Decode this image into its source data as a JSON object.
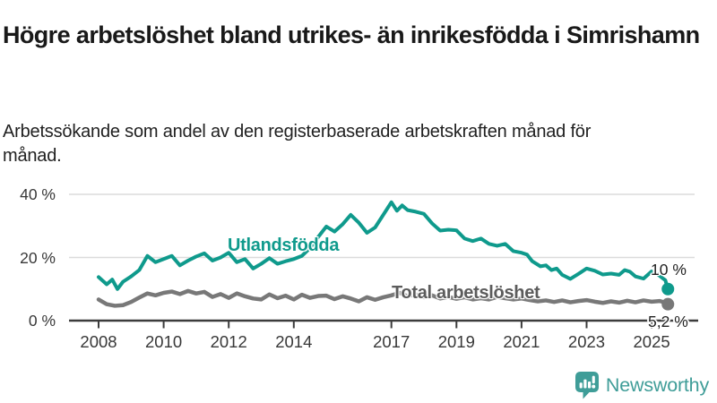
{
  "header": {
    "title": "Högre arbetslöshet bland utrikes- än inrikesfödda i Simrishamn",
    "subtitle": "Arbetssökande som andel av den registerbaserade arbetskraften månad för månad."
  },
  "chart_data": {
    "type": "line",
    "title": "Högre arbetslöshet bland utrikes- än inrikesfödda i Simrishamn",
    "xlabel": "",
    "ylabel": "",
    "x_unit": "decimal year (monthly data 2008 - mid 2025)",
    "ylim": [
      0,
      44
    ],
    "xlim": [
      2007.1,
      2026.5
    ],
    "grid": "horizontal only",
    "y_ticks": [
      {
        "value": 0,
        "label": "0 %"
      },
      {
        "value": 20,
        "label": "20 %"
      },
      {
        "value": 40,
        "label": "40 %"
      }
    ],
    "x_ticks": [
      "2008",
      "2010",
      "2012",
      "2014",
      "2017",
      "2019",
      "2021",
      "2023",
      "2025"
    ],
    "series": [
      {
        "name": "Utlandsfödda",
        "color": "#0F9A8C",
        "end_label": "10 %",
        "end_value": 10,
        "x": [
          2008.0,
          2008.25,
          2008.42,
          2008.58,
          2008.75,
          2009.0,
          2009.25,
          2009.5,
          2009.75,
          2010.0,
          2010.25,
          2010.5,
          2010.75,
          2011.0,
          2011.25,
          2011.5,
          2011.75,
          2012.0,
          2012.25,
          2012.5,
          2012.75,
          2013.0,
          2013.25,
          2013.5,
          2013.75,
          2014.0,
          2014.25,
          2014.5,
          2014.75,
          2015.0,
          2015.25,
          2015.5,
          2015.75,
          2016.0,
          2016.25,
          2016.5,
          2016.75,
          2017.0,
          2017.17,
          2017.33,
          2017.5,
          2017.75,
          2018.0,
          2018.25,
          2018.5,
          2018.75,
          2019.0,
          2019.25,
          2019.5,
          2019.75,
          2020.0,
          2020.25,
          2020.5,
          2020.75,
          2021.0,
          2021.17,
          2021.33,
          2021.58,
          2021.75,
          2021.92,
          2022.08,
          2022.25,
          2022.5,
          2022.75,
          2023.0,
          2023.25,
          2023.5,
          2023.75,
          2024.0,
          2024.17,
          2024.33,
          2024.5,
          2024.75,
          2025.0,
          2025.17,
          2025.33,
          2025.42,
          2025.5
        ],
        "y": [
          13.8,
          11.5,
          13.0,
          10.0,
          12.3,
          14.0,
          16.0,
          20.5,
          18.5,
          19.5,
          20.5,
          17.5,
          19.0,
          20.3,
          21.3,
          19.0,
          20.0,
          21.5,
          18.5,
          19.5,
          16.5,
          18.0,
          19.8,
          18.0,
          18.8,
          19.5,
          20.5,
          23.0,
          26.5,
          29.8,
          28.2,
          30.5,
          33.5,
          31.0,
          27.8,
          29.5,
          33.5,
          37.5,
          34.8,
          36.5,
          35.0,
          34.5,
          33.8,
          30.8,
          28.5,
          28.8,
          28.6,
          26.0,
          25.2,
          26.0,
          24.3,
          23.7,
          24.3,
          22.0,
          21.5,
          20.9,
          18.8,
          17.2,
          17.5,
          16.0,
          16.5,
          14.5,
          13.2,
          14.8,
          16.5,
          15.8,
          14.6,
          14.9,
          14.5,
          16.0,
          15.5,
          14.0,
          13.3,
          15.6,
          14.8,
          13.5,
          12.8,
          10.0
        ]
      },
      {
        "name": "Total arbetslöshet",
        "color": "#787878",
        "end_label": "5,2 %",
        "end_value": 5.2,
        "x": [
          2008.0,
          2008.25,
          2008.5,
          2008.75,
          2009.0,
          2009.25,
          2009.5,
          2009.75,
          2010.0,
          2010.25,
          2010.5,
          2010.75,
          2011.0,
          2011.25,
          2011.5,
          2011.75,
          2012.0,
          2012.25,
          2012.5,
          2012.75,
          2013.0,
          2013.25,
          2013.5,
          2013.75,
          2014.0,
          2014.25,
          2014.5,
          2014.75,
          2015.0,
          2015.25,
          2015.5,
          2015.75,
          2016.0,
          2016.25,
          2016.5,
          2016.75,
          2017.0,
          2017.25,
          2017.5,
          2017.75,
          2018.0,
          2018.25,
          2018.5,
          2018.75,
          2019.0,
          2019.25,
          2019.5,
          2019.75,
          2020.0,
          2020.25,
          2020.5,
          2020.75,
          2021.0,
          2021.25,
          2021.5,
          2021.75,
          2022.0,
          2022.25,
          2022.5,
          2022.75,
          2023.0,
          2023.25,
          2023.5,
          2023.75,
          2024.0,
          2024.25,
          2024.5,
          2024.75,
          2025.0,
          2025.25,
          2025.42,
          2025.5
        ],
        "y": [
          6.7,
          5.2,
          4.7,
          4.9,
          5.9,
          7.3,
          8.6,
          8.0,
          8.8,
          9.2,
          8.4,
          9.4,
          8.6,
          9.1,
          7.5,
          8.4,
          7.2,
          8.6,
          7.7,
          7.0,
          6.7,
          8.3,
          7.1,
          7.9,
          6.7,
          8.2,
          7.2,
          7.8,
          7.9,
          6.8,
          7.7,
          7.0,
          6.1,
          7.4,
          6.6,
          7.4,
          8.0,
          8.8,
          7.7,
          8.3,
          7.4,
          8.0,
          7.0,
          7.5,
          6.9,
          7.4,
          6.7,
          7.1,
          6.7,
          7.5,
          7.1,
          6.7,
          7.0,
          6.5,
          6.1,
          6.4,
          5.9,
          6.4,
          5.8,
          6.2,
          6.5,
          6.0,
          5.6,
          6.1,
          5.7,
          6.3,
          5.8,
          6.4,
          6.0,
          6.2,
          5.7,
          5.2
        ]
      }
    ],
    "legend_position": "labels drawn next to lines inside plot",
    "colors": {
      "grid": "#DBDBDB",
      "axis": "#3C3C3C",
      "tick_text": "#383838",
      "teal_series": "#0F9A8C",
      "gray_series": "#787878"
    }
  },
  "footer": {
    "brand": "Newsworthy",
    "brand_color": "#3F9D98",
    "logo_icon": "speech-bubble-with-bar-chart-and-exclamation"
  }
}
